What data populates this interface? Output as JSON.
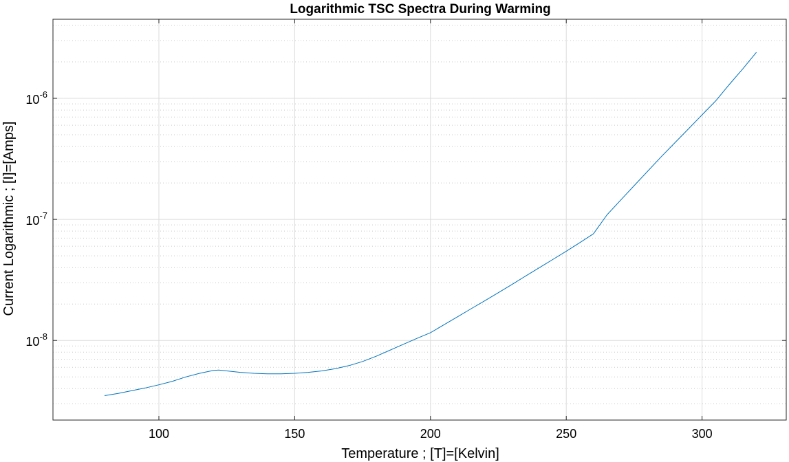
{
  "chart_data": {
    "type": "line",
    "title": "Logarithmic TSC Spectra During Warming",
    "xlabel": "Temperature ; [T]=[Kelvin]",
    "ylabel": "Current Logarithmic ; [I]=[Amps]",
    "xlim": [
      61,
      331
    ],
    "ylim": [
      2.2e-09,
      4.5e-06
    ],
    "yscale": "log",
    "xticks": [
      100,
      150,
      200,
      250,
      300
    ],
    "xtick_labels": [
      "100",
      "150",
      "200",
      "250",
      "300"
    ],
    "yticks": [
      1e-08,
      1e-07,
      1e-06
    ],
    "ytick_labels": [
      {
        "base": "10",
        "exp": "-8"
      },
      {
        "base": "10",
        "exp": "-7"
      },
      {
        "base": "10",
        "exp": "-6"
      }
    ],
    "grid": true,
    "minor_grid_y": true,
    "series": [
      {
        "color": "#0072BD",
        "x": [
          80,
          85,
          90,
          95,
          100,
          105,
          110,
          115,
          120,
          122,
          125,
          130,
          135,
          140,
          145,
          150,
          155,
          160,
          165,
          170,
          175,
          180,
          185,
          190,
          195,
          200,
          205,
          210,
          215,
          220,
          225,
          230,
          235,
          240,
          245,
          250,
          255,
          260,
          265,
          270,
          275,
          280,
          285,
          290,
          295,
          300,
          305,
          310,
          315,
          320
        ],
        "y": [
          3.5e-09,
          3.65e-09,
          3.85e-09,
          4.05e-09,
          4.3e-09,
          4.6e-09,
          5e-09,
          5.35e-09,
          5.65e-09,
          5.7e-09,
          5.6e-09,
          5.45e-09,
          5.35e-09,
          5.3e-09,
          5.3e-09,
          5.35e-09,
          5.45e-09,
          5.6e-09,
          5.85e-09,
          6.2e-09,
          6.7e-09,
          7.4e-09,
          8.3e-09,
          9.3e-09,
          1.04e-08,
          1.16e-08,
          1.35e-08,
          1.57e-08,
          1.83e-08,
          2.13e-08,
          2.48e-08,
          2.9e-08,
          3.4e-08,
          3.98e-08,
          4.66e-08,
          5.46e-08,
          6.43e-08,
          7.6e-08,
          1.09e-07,
          1.44e-07,
          1.9e-07,
          2.5e-07,
          3.3e-07,
          4.3e-07,
          5.6e-07,
          7.3e-07,
          9.5e-07,
          1.3e-06,
          1.75e-06,
          2.4e-06
        ]
      }
    ]
  }
}
